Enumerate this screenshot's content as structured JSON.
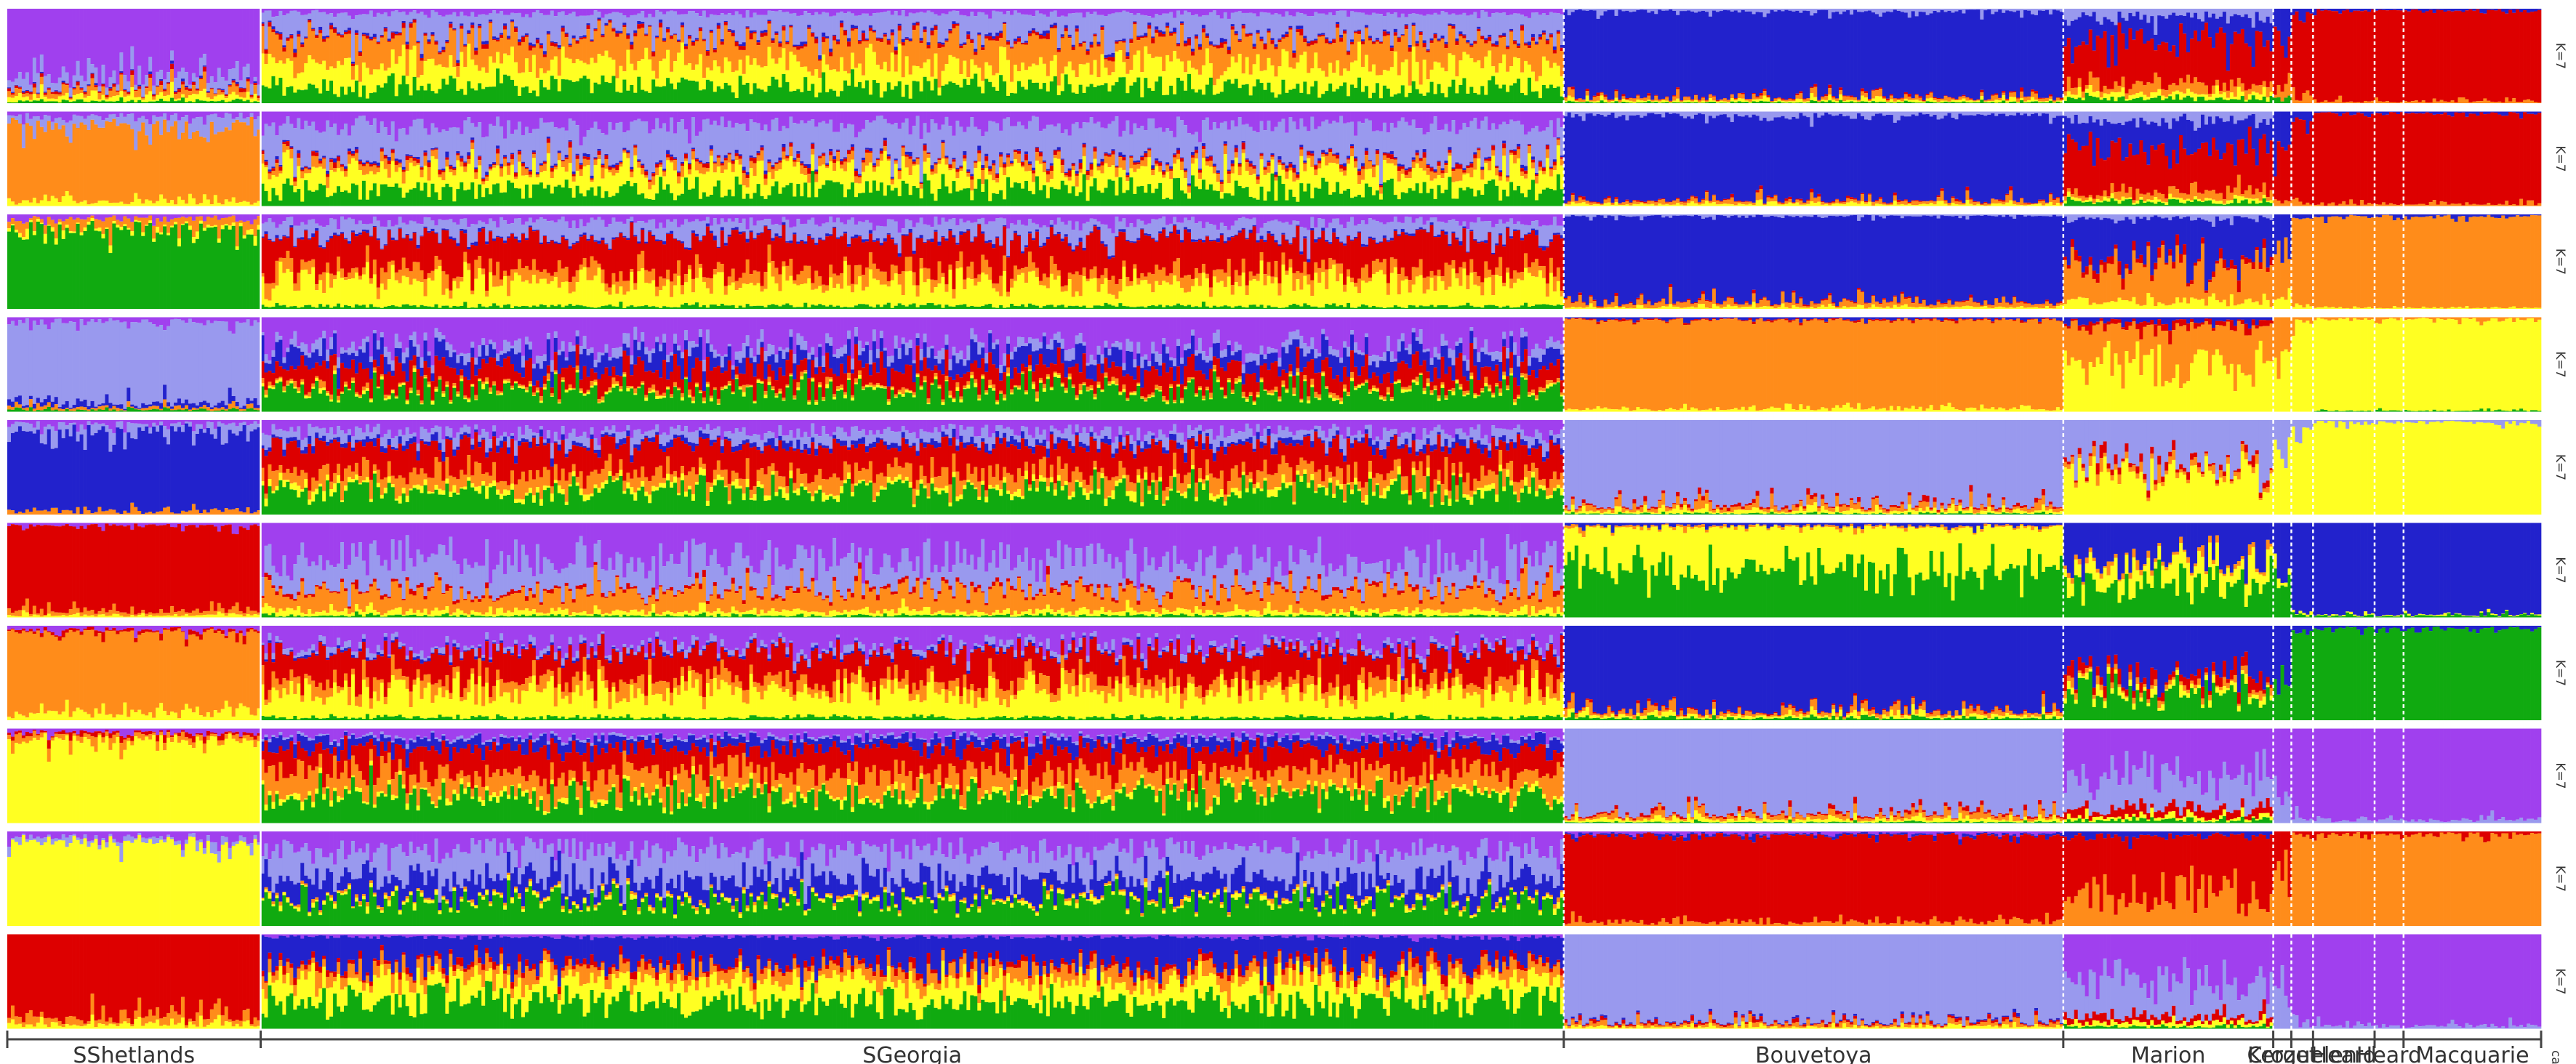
{
  "chart_data": {
    "type": "bar",
    "subtype": "stacked-admixture-barplot",
    "title": "",
    "xlabel": "",
    "ylabel": "",
    "ylim": [
      0,
      1
    ],
    "k_values": [
      7,
      7,
      7,
      7,
      7,
      7,
      7,
      7,
      7,
      7
    ],
    "run_labels": [
      "K=7",
      "K=7",
      "K=7",
      "K=7",
      "K=7",
      "K=7",
      "K=7",
      "K=7",
      "K=7",
      "K=7"
    ],
    "bottom_corner_label": "catc",
    "populations": [
      {
        "name": "SShetlands",
        "n_individuals": 70
      },
      {
        "name": "SGeorgia",
        "n_individuals": 360
      },
      {
        "name": "Bouvetoya",
        "n_individuals": 138
      },
      {
        "name": "Marion",
        "n_individuals": 58
      },
      {
        "name": "Crozet",
        "n_individuals": 5
      },
      {
        "name": "Kerguelen",
        "n_individuals": 6
      },
      {
        "name": "Heard",
        "n_individuals": 17
      },
      {
        "name": "Heard",
        "n_individuals": 8
      },
      {
        "name": "Macquarie",
        "n_individuals": 38
      }
    ],
    "cluster_colors": {
      "blue": "#2222cc",
      "red": "#dd0000",
      "orange": "#ff8c1a",
      "yellow": "#ffff22",
      "green": "#10aa10",
      "light_purple": "#9999ee",
      "purple": "#a040ee"
    },
    "series": [
      {
        "name": "K=7 run 1",
        "population_means": [
          {
            "purple": 0.72,
            "light_purple": 0.12,
            "orange": 0.06,
            "yellow": 0.05,
            "green": 0.02,
            "red": 0.02,
            "blue": 0.01
          },
          {
            "orange": 0.26,
            "yellow": 0.24,
            "green": 0.18,
            "light_purple": 0.22,
            "purple": 0.05,
            "red": 0.03,
            "blue": 0.02
          },
          {
            "blue": 0.9,
            "light_purple": 0.03,
            "orange": 0.03,
            "yellow": 0.02,
            "green": 0.01,
            "red": 0.01,
            "purple": 0
          },
          {
            "red": 0.45,
            "blue": 0.25,
            "light_purple": 0.1,
            "orange": 0.1,
            "green": 0.05,
            "yellow": 0.05,
            "purple": 0
          },
          {
            "red": 0.5,
            "blue": 0.35,
            "orange": 0.1,
            "green": 0.05
          },
          {
            "red": 0.8,
            "blue": 0.1,
            "orange": 0.1
          },
          {
            "red": 0.96,
            "blue": 0.02,
            "orange": 0.02
          },
          {
            "red": 0.96,
            "blue": 0.02,
            "orange": 0.02
          },
          {
            "red": 0.96,
            "blue": 0.02,
            "orange": 0.02
          }
        ]
      },
      {
        "name": "K=7 run 2",
        "population_means": [
          {
            "orange": 0.8,
            "light_purple": 0.1,
            "purple": 0.05,
            "yellow": 0.05
          },
          {
            "light_purple": 0.35,
            "yellow": 0.2,
            "green": 0.18,
            "purple": 0.15,
            "orange": 0.07,
            "red": 0.03,
            "blue": 0.02
          },
          {
            "blue": 0.9,
            "light_purple": 0.04,
            "orange": 0.03,
            "yellow": 0.02,
            "red": 0.01
          },
          {
            "red": 0.42,
            "blue": 0.32,
            "light_purple": 0.1,
            "orange": 0.08,
            "green": 0.05,
            "yellow": 0.03
          },
          {
            "red": 0.5,
            "blue": 0.4,
            "orange": 0.1
          },
          {
            "red": 0.85,
            "blue": 0.1,
            "orange": 0.05
          },
          {
            "red": 0.96,
            "blue": 0.02,
            "orange": 0.02
          },
          {
            "red": 0.96,
            "blue": 0.02,
            "orange": 0.02
          },
          {
            "red": 0.96,
            "blue": 0.02,
            "orange": 0.02
          }
        ]
      },
      {
        "name": "K=7 run 3",
        "population_means": [
          {
            "green": 0.85,
            "orange": 0.08,
            "purple": 0.04,
            "yellow": 0.03
          },
          {
            "red": 0.35,
            "yellow": 0.25,
            "light_purple": 0.15,
            "orange": 0.12,
            "purple": 0.08,
            "green": 0.03,
            "blue": 0.02
          },
          {
            "blue": 0.9,
            "orange": 0.05,
            "yellow": 0.02,
            "light_purple": 0.02,
            "red": 0.01
          },
          {
            "blue": 0.45,
            "orange": 0.35,
            "yellow": 0.08,
            "red": 0.07,
            "light_purple": 0.05
          },
          {
            "blue": 0.4,
            "orange": 0.5,
            "yellow": 0.1
          },
          {
            "orange": 0.9,
            "blue": 0.05,
            "yellow": 0.05
          },
          {
            "orange": 0.97,
            "blue": 0.02,
            "yellow": 0.01
          },
          {
            "orange": 0.97,
            "blue": 0.02,
            "yellow": 0.01
          },
          {
            "orange": 0.97,
            "blue": 0.02,
            "yellow": 0.01
          }
        ]
      },
      {
        "name": "K=7 run 4",
        "population_means": [
          {
            "light_purple": 0.85,
            "blue": 0.05,
            "purple": 0.05,
            "orange": 0.03,
            "green": 0.02
          },
          {
            "purple": 0.3,
            "green": 0.22,
            "red": 0.2,
            "blue": 0.15,
            "light_purple": 0.08,
            "orange": 0.03,
            "yellow": 0.02
          },
          {
            "orange": 0.94,
            "yellow": 0.03,
            "blue": 0.02,
            "red": 0.01
          },
          {
            "yellow": 0.5,
            "orange": 0.4,
            "red": 0.05,
            "blue": 0.05
          },
          {
            "yellow": 0.7,
            "orange": 0.3
          },
          {
            "yellow": 0.95,
            "orange": 0.05
          },
          {
            "yellow": 0.97,
            "orange": 0.02,
            "green": 0.01
          },
          {
            "yellow": 0.97,
            "orange": 0.02,
            "green": 0.01
          },
          {
            "yellow": 0.97,
            "orange": 0.02,
            "green": 0.01
          }
        ]
      },
      {
        "name": "K=7 run 5",
        "population_means": [
          {
            "blue": 0.85,
            "light_purple": 0.08,
            "purple": 0.04,
            "orange": 0.03
          },
          {
            "red": 0.28,
            "green": 0.25,
            "orange": 0.15,
            "purple": 0.12,
            "light_purple": 0.1,
            "blue": 0.05,
            "yellow": 0.05
          },
          {
            "light_purple": 0.9,
            "orange": 0.04,
            "yellow": 0.03,
            "red": 0.02,
            "green": 0.01
          },
          {
            "light_purple": 0.45,
            "yellow": 0.45,
            "orange": 0.05,
            "red": 0.05
          },
          {
            "light_purple": 0.5,
            "yellow": 0.5
          },
          {
            "yellow": 0.9,
            "light_purple": 0.1
          },
          {
            "yellow": 0.97,
            "light_purple": 0.03
          },
          {
            "yellow": 0.97,
            "light_purple": 0.03
          },
          {
            "yellow": 0.97,
            "light_purple": 0.03
          }
        ]
      },
      {
        "name": "K=7 run 6",
        "population_means": [
          {
            "red": 0.9,
            "orange": 0.05,
            "purple": 0.03,
            "yellow": 0.02
          },
          {
            "purple": 0.4,
            "light_purple": 0.3,
            "orange": 0.2,
            "yellow": 0.05,
            "red": 0.03,
            "green": 0.02
          },
          {
            "green": 0.5,
            "yellow": 0.45,
            "blue": 0.03,
            "orange": 0.02
          },
          {
            "blue": 0.4,
            "green": 0.35,
            "yellow": 0.2,
            "orange": 0.05
          },
          {
            "blue": 0.6,
            "green": 0.3,
            "yellow": 0.1
          },
          {
            "blue": 0.95,
            "green": 0.03,
            "yellow": 0.02
          },
          {
            "blue": 0.97,
            "green": 0.02,
            "yellow": 0.01
          },
          {
            "blue": 0.97,
            "green": 0.02,
            "yellow": 0.01
          },
          {
            "blue": 0.97,
            "green": 0.02,
            "yellow": 0.01
          }
        ]
      },
      {
        "name": "K=7 run 7",
        "population_means": [
          {
            "orange": 0.85,
            "yellow": 0.08,
            "purple": 0.04,
            "red": 0.03
          },
          {
            "red": 0.3,
            "yellow": 0.28,
            "purple": 0.2,
            "orange": 0.12,
            "light_purple": 0.05,
            "green": 0.03,
            "blue": 0.02
          },
          {
            "blue": 0.9,
            "orange": 0.04,
            "yellow": 0.03,
            "green": 0.02,
            "red": 0.01
          },
          {
            "blue": 0.5,
            "green": 0.3,
            "red": 0.1,
            "orange": 0.05,
            "yellow": 0.05
          },
          {
            "blue": 0.5,
            "green": 0.5
          },
          {
            "green": 0.9,
            "blue": 0.1
          },
          {
            "green": 0.97,
            "blue": 0.03
          },
          {
            "green": 0.97,
            "blue": 0.03
          },
          {
            "green": 0.97,
            "blue": 0.03
          }
        ]
      },
      {
        "name": "K=7 run 8",
        "population_means": [
          {
            "yellow": 0.88,
            "orange": 0.05,
            "purple": 0.04,
            "red": 0.03
          },
          {
            "green": 0.28,
            "red": 0.26,
            "orange": 0.22,
            "blue": 0.1,
            "purple": 0.08,
            "yellow": 0.04,
            "light_purple": 0.02
          },
          {
            "light_purple": 0.9,
            "orange": 0.04,
            "yellow": 0.03,
            "red": 0.02,
            "green": 0.01
          },
          {
            "purple": 0.5,
            "light_purple": 0.35,
            "red": 0.08,
            "yellow": 0.04,
            "green": 0.03
          },
          {
            "purple": 0.6,
            "light_purple": 0.4
          },
          {
            "purple": 0.95,
            "light_purple": 0.05
          },
          {
            "purple": 0.97,
            "light_purple": 0.03
          },
          {
            "purple": 0.97,
            "light_purple": 0.03
          },
          {
            "purple": 0.97,
            "light_purple": 0.03
          }
        ]
      },
      {
        "name": "K=7 run 9",
        "population_means": [
          {
            "yellow": 0.88,
            "purple": 0.07,
            "light_purple": 0.05
          },
          {
            "light_purple": 0.3,
            "green": 0.25,
            "purple": 0.2,
            "blue": 0.2,
            "yellow": 0.03,
            "orange": 0.02
          },
          {
            "red": 0.92,
            "orange": 0.04,
            "blue": 0.02,
            "purple": 0.02
          },
          {
            "red": 0.6,
            "orange": 0.35,
            "blue": 0.05
          },
          {
            "red": 0.5,
            "orange": 0.5
          },
          {
            "orange": 0.95,
            "red": 0.05
          },
          {
            "orange": 0.97,
            "red": 0.03
          },
          {
            "orange": 0.97,
            "red": 0.03
          },
          {
            "orange": 0.97,
            "red": 0.03
          }
        ]
      },
      {
        "name": "K=7 run 10",
        "population_means": [
          {
            "red": 0.88,
            "orange": 0.07,
            "yellow": 0.05
          },
          {
            "blue": 0.3,
            "green": 0.28,
            "yellow": 0.22,
            "orange": 0.12,
            "red": 0.05,
            "purple": 0.03
          },
          {
            "light_purple": 0.92,
            "orange": 0.03,
            "yellow": 0.02,
            "red": 0.02,
            "blue": 0.01
          },
          {
            "purple": 0.5,
            "light_purple": 0.38,
            "red": 0.06,
            "yellow": 0.04,
            "green": 0.02
          },
          {
            "purple": 0.6,
            "light_purple": 0.4
          },
          {
            "purple": 0.95,
            "light_purple": 0.05
          },
          {
            "purple": 0.97,
            "light_purple": 0.03
          },
          {
            "purple": 0.97,
            "light_purple": 0.03
          },
          {
            "purple": 0.97,
            "light_purple": 0.03
          }
        ]
      }
    ],
    "grid": false,
    "legend": "none"
  }
}
